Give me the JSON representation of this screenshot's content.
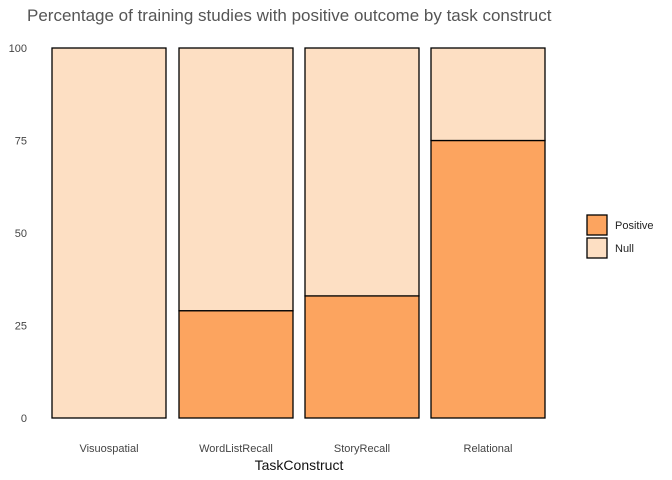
{
  "chart_data": {
    "type": "bar",
    "stacked": true,
    "title": "Percentage of training studies with positive outcome by task construct",
    "xlabel": "TaskConstruct",
    "ylabel": "",
    "ylim": [
      0,
      100
    ],
    "yticks": [
      "0",
      "25",
      "50",
      "75",
      "100"
    ],
    "categories": [
      "Visuospatial",
      "WordListRecall",
      "StoryRecall",
      "Relational"
    ],
    "series": [
      {
        "name": "Positive",
        "color": "#fca45f",
        "values": [
          0,
          29,
          33,
          75
        ]
      },
      {
        "name": "Null",
        "color": "#fddfc3",
        "values": [
          100,
          71,
          67,
          25
        ]
      }
    ],
    "legend": {
      "position": "right"
    },
    "grid": false
  }
}
